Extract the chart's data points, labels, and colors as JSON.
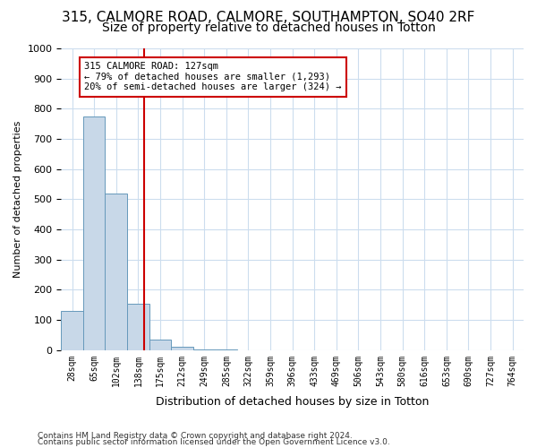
{
  "title_line1": "315, CALMORE ROAD, CALMORE, SOUTHAMPTON, SO40 2RF",
  "title_line2": "Size of property relative to detached houses in Totton",
  "xlabel": "Distribution of detached houses by size in Totton",
  "ylabel": "Number of detached properties",
  "footer_line1": "Contains HM Land Registry data © Crown copyright and database right 2024.",
  "footer_line2": "Contains public sector information licensed under the Open Government Licence v3.0.",
  "bin_labels": [
    "28sqm",
    "65sqm",
    "102sqm",
    "138sqm",
    "175sqm",
    "212sqm",
    "249sqm",
    "285sqm",
    "322sqm",
    "359sqm",
    "396sqm",
    "433sqm",
    "469sqm",
    "506sqm",
    "543sqm",
    "580sqm",
    "616sqm",
    "653sqm",
    "690sqm",
    "727sqm",
    "764sqm"
  ],
  "bar_values": [
    130,
    775,
    520,
    155,
    35,
    10,
    2,
    1,
    0,
    0,
    0,
    0,
    0,
    0,
    0,
    0,
    0,
    0,
    0,
    0,
    0
  ],
  "bar_color": "#c8d8e8",
  "bar_edge_color": "#6699bb",
  "vline_x": 3.27,
  "vline_color": "#cc0000",
  "annotation_box_text": "315 CALMORE ROAD: 127sqm\n← 79% of detached houses are smaller (1,293)\n20% of semi-detached houses are larger (324) →",
  "ylim": [
    0,
    1000
  ],
  "yticks": [
    0,
    100,
    200,
    300,
    400,
    500,
    600,
    700,
    800,
    900,
    1000
  ],
  "background_color": "#ffffff",
  "grid_color": "#ccddee",
  "title1_fontsize": 11,
  "title2_fontsize": 10
}
